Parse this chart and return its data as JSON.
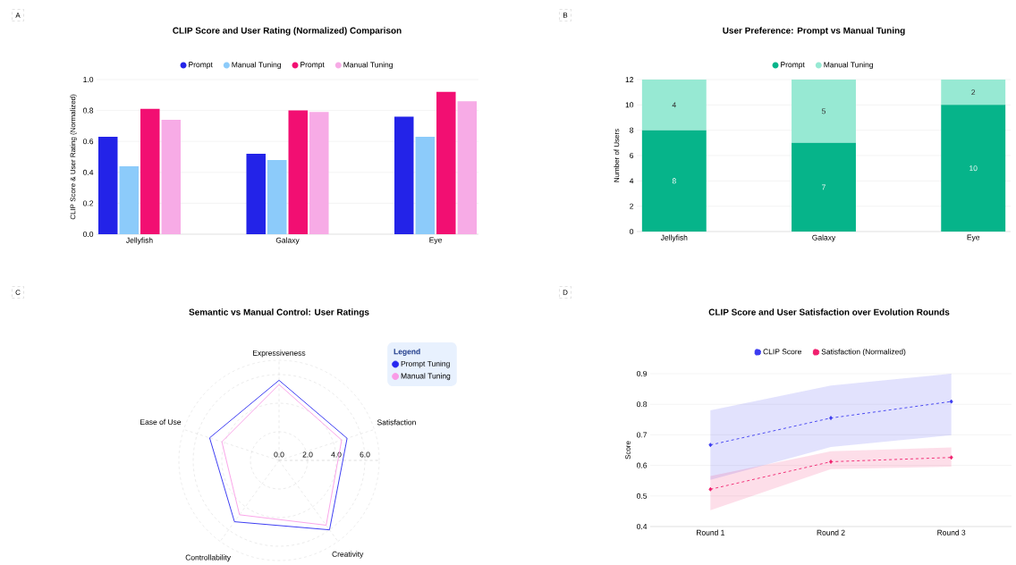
{
  "chart_data": [
    {
      "type": "bar",
      "title": "CLIP Score and User Rating (Normalized) Comparison",
      "ylabel": "CLIP Score & User Rating (Normalized)",
      "annotations": [
        "A"
      ],
      "categories": [
        "Jellyfish",
        "Galaxy",
        "Eye"
      ],
      "series": [
        {
          "name": "Prompt",
          "color": "#2323e8",
          "values": [
            0.63,
            0.52,
            0.76
          ]
        },
        {
          "name": "Manual Tuning",
          "color": "#8ccbfa",
          "values": [
            0.44,
            0.48,
            0.63
          ]
        },
        {
          "name": "Prompt",
          "color": "#f20f72",
          "values": [
            0.81,
            0.8,
            0.92
          ]
        },
        {
          "name": "Manual Tuning",
          "color": "#f7abe6",
          "values": [
            0.74,
            0.79,
            0.86
          ]
        }
      ],
      "ylim": [
        0,
        1
      ],
      "yticks": [
        {
          "value": 0,
          "label": "0.0"
        },
        {
          "value": 0.2,
          "label": "0.2"
        },
        {
          "value": 0.4,
          "label": "0.4"
        },
        {
          "value": 0.6,
          "label": "0.6"
        },
        {
          "value": 0.8,
          "label": "0.8"
        },
        {
          "value": 1,
          "label": "1.0"
        }
      ],
      "grid": "y",
      "legend": "top"
    },
    {
      "type": "bar",
      "title": "User Preference: Prompt vs Manual Tuning",
      "ylabel": "Number of Users",
      "annotations": [
        "B"
      ],
      "categories": [
        "Jellyfish",
        "Galaxy",
        "Eye"
      ],
      "stacked": true,
      "series": [
        {
          "name": "Prompt",
          "color": "#06b48a",
          "values": [
            8,
            7,
            10
          ]
        },
        {
          "name": "Manual Tuning",
          "color": "#97e9d3",
          "values": [
            4,
            5,
            2
          ]
        }
      ],
      "ylim": [
        0,
        12
      ],
      "yticks": [
        0,
        2,
        4,
        6,
        8,
        10,
        12
      ],
      "grid": "y",
      "legend": "top",
      "data_labels": true
    },
    {
      "type": "radar",
      "title": "Semantic vs Manual Control: User Ratings",
      "annotations": [
        "C"
      ],
      "legend_title": "Legend",
      "categories": [
        "Expressiveness",
        "Satisfaction",
        "Creativity",
        "Controllability",
        "Ease of Use"
      ],
      "series": [
        {
          "name": "Prompt Tuning",
          "color": "#2727f0",
          "values": [
            5.6,
            5.0,
            6.0,
            5.3,
            5.1
          ]
        },
        {
          "name": "Manual Tuning",
          "color": "#f99be6",
          "values": [
            5.3,
            4.6,
            5.6,
            4.7,
            4.2
          ]
        }
      ],
      "ylim": [
        0,
        7
      ],
      "yticks": [
        {
          "value": 0,
          "label": "0.0"
        },
        {
          "value": 2,
          "label": "2.0"
        },
        {
          "value": 4,
          "label": "4.0"
        },
        {
          "value": 6,
          "label": "6.0"
        }
      ],
      "grid": true,
      "legend": "top right"
    },
    {
      "type": "line",
      "title": "CLIP Score and User Satisfaction over Evolution Rounds",
      "ylabel": "Score",
      "annotations": [
        "D"
      ],
      "categories": [
        "Round 1",
        "Round 2",
        "Round 3"
      ],
      "series": [
        {
          "name": "CLIP Score",
          "color": "#3b3bf0",
          "values": [
            0.667,
            0.755,
            0.809
          ],
          "lower": [
            0.553,
            0.66,
            0.699
          ],
          "upper": [
            0.78,
            0.861,
            0.9
          ]
        },
        {
          "name": "Satisfaction (Normalized)",
          "color": "#f0206e",
          "values": [
            0.522,
            0.612,
            0.626
          ],
          "lower": [
            0.453,
            0.588,
            0.596
          ],
          "upper": [
            0.565,
            0.646,
            0.659
          ]
        }
      ],
      "ylim": [
        0.4,
        0.9
      ],
      "yticks": [
        0.4,
        0.5,
        0.6,
        0.7,
        0.8,
        0.9
      ],
      "grid": "y",
      "legend": "top",
      "marker": "diamond",
      "line_style": "dashed"
    }
  ]
}
